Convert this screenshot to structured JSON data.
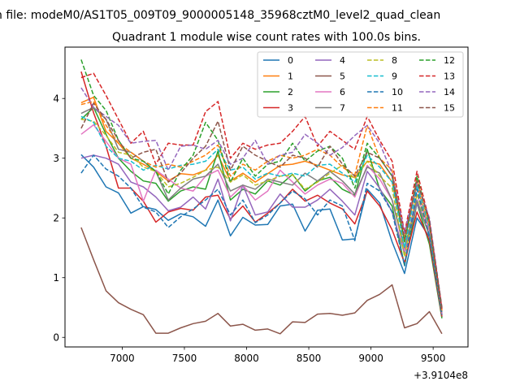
{
  "chart_data": {
    "type": "line",
    "suptitle": "n file: modeM0/AS1T05_009T09_9000005148_35968cztM0_level2_quad_clean",
    "title": "Quadrant 1 module wise count rates with 100.0s bins.",
    "xlabel": "",
    "ylabel": "",
    "x_offset_label": "+3.9104e8",
    "xlim": [
      6540,
      9780
    ],
    "ylim": [
      -0.16,
      4.86
    ],
    "xticks": [
      7000,
      7500,
      8000,
      8500,
      9000,
      9500
    ],
    "yticks": [
      0,
      1,
      2,
      3,
      4
    ],
    "legend_position": "top-right",
    "x": [
      6670,
      6770,
      6870,
      6970,
      7070,
      7170,
      7270,
      7370,
      7470,
      7570,
      7670,
      7770,
      7870,
      7970,
      8070,
      8170,
      8270,
      8370,
      8470,
      8570,
      8670,
      8770,
      8870,
      8970,
      9070,
      9170,
      9270,
      9370,
      9470,
      9570
    ],
    "series": [
      {
        "name": "0",
        "color": "#1f77b4",
        "dash": "solid",
        "values": [
          3.06,
          2.85,
          2.52,
          2.42,
          2.08,
          2.19,
          2.14,
          1.96,
          2.07,
          2.02,
          1.86,
          2.3,
          1.7,
          2.01,
          1.88,
          1.89,
          2.2,
          2.23,
          1.78,
          2.13,
          2.15,
          1.63,
          1.65,
          2.48,
          2.25,
          1.6,
          1.07,
          2.0,
          1.68,
          0.34
        ]
      },
      {
        "name": "1",
        "color": "#ff7f0e",
        "dash": "solid",
        "values": [
          3.93,
          4.02,
          3.45,
          3.25,
          3.0,
          2.9,
          2.78,
          2.62,
          2.74,
          2.72,
          2.8,
          3.05,
          2.62,
          2.75,
          2.6,
          2.74,
          2.88,
          2.9,
          2.95,
          2.88,
          2.8,
          2.72,
          2.68,
          2.95,
          2.9,
          2.6,
          1.6,
          2.55,
          1.8,
          0.38
        ]
      },
      {
        "name": "2",
        "color": "#2ca02c",
        "dash": "solid",
        "values": [
          3.65,
          3.85,
          3.4,
          3.0,
          2.78,
          2.62,
          2.58,
          2.28,
          2.45,
          2.52,
          2.48,
          3.12,
          2.3,
          2.48,
          2.4,
          2.62,
          2.55,
          2.73,
          2.45,
          2.62,
          2.68,
          2.48,
          2.38,
          3.15,
          2.48,
          2.2,
          1.2,
          2.25,
          1.56,
          0.32
        ]
      },
      {
        "name": "3",
        "color": "#d62728",
        "dash": "solid",
        "values": [
          4.45,
          3.76,
          3.2,
          2.5,
          2.5,
          2.28,
          1.93,
          2.1,
          2.16,
          2.13,
          2.35,
          2.38,
          1.98,
          2.2,
          1.93,
          2.08,
          2.25,
          2.48,
          2.28,
          2.38,
          2.25,
          2.15,
          1.9,
          2.45,
          2.2,
          1.8,
          1.25,
          2.1,
          1.62,
          0.35
        ]
      },
      {
        "name": "4",
        "color": "#9467bd",
        "dash": "solid",
        "values": [
          3.0,
          3.05,
          3.0,
          2.9,
          2.6,
          2.52,
          2.35,
          2.12,
          2.18,
          2.35,
          2.15,
          2.65,
          1.95,
          2.55,
          2.05,
          2.1,
          2.4,
          2.18,
          2.18,
          2.3,
          2.48,
          2.28,
          2.05,
          2.78,
          2.5,
          2.1,
          1.4,
          2.25,
          1.72,
          0.38
        ]
      },
      {
        "name": "5",
        "color": "#8c564b",
        "dash": "solid",
        "values": [
          1.84,
          1.3,
          0.78,
          0.58,
          0.47,
          0.38,
          0.07,
          0.07,
          0.16,
          0.23,
          0.27,
          0.4,
          0.19,
          0.22,
          0.12,
          0.14,
          0.06,
          0.26,
          0.25,
          0.39,
          0.4,
          0.37,
          0.41,
          0.62,
          0.72,
          0.88,
          0.16,
          0.23,
          0.43,
          0.06
        ]
      },
      {
        "name": "6",
        "color": "#e377c2",
        "dash": "solid",
        "values": [
          3.4,
          3.56,
          3.28,
          3.0,
          2.9,
          2.28,
          2.8,
          2.65,
          2.5,
          2.45,
          2.7,
          2.8,
          2.35,
          2.55,
          2.3,
          2.45,
          2.8,
          2.6,
          2.4,
          2.55,
          2.65,
          2.58,
          2.35,
          2.88,
          2.65,
          2.3,
          1.45,
          2.4,
          1.78,
          0.4
        ]
      },
      {
        "name": "7",
        "color": "#7f7f7f",
        "dash": "solid",
        "values": [
          3.75,
          3.85,
          3.65,
          3.15,
          3.1,
          2.95,
          2.78,
          2.3,
          2.5,
          2.65,
          2.7,
          2.9,
          2.45,
          2.55,
          2.48,
          2.65,
          2.6,
          2.55,
          2.75,
          2.62,
          2.78,
          2.62,
          2.4,
          2.85,
          2.75,
          2.3,
          1.5,
          2.3,
          1.7,
          0.42
        ]
      },
      {
        "name": "8",
        "color": "#bcbd22",
        "dash": "dashed",
        "values": [
          3.65,
          3.62,
          3.38,
          3.1,
          3.05,
          2.85,
          2.78,
          2.52,
          2.58,
          2.68,
          2.8,
          2.85,
          2.6,
          2.72,
          2.55,
          2.62,
          2.7,
          2.72,
          2.48,
          2.6,
          2.75,
          2.88,
          2.65,
          2.95,
          2.7,
          2.5,
          1.35,
          2.4,
          1.7,
          0.45
        ]
      },
      {
        "name": "9",
        "color": "#17becf",
        "dash": "dashed",
        "values": [
          3.7,
          3.6,
          3.2,
          3.0,
          2.95,
          2.8,
          2.88,
          2.82,
          2.88,
          2.9,
          2.95,
          3.15,
          2.8,
          2.85,
          2.65,
          2.75,
          2.7,
          2.75,
          2.7,
          2.88,
          2.9,
          2.75,
          2.6,
          3.05,
          2.85,
          2.6,
          1.5,
          2.55,
          1.85,
          0.45
        ]
      },
      {
        "name": "10",
        "color": "#1f77b4",
        "dash": "dashed",
        "values": [
          2.75,
          3.05,
          2.82,
          2.7,
          2.5,
          2.18,
          2.1,
          1.84,
          2.02,
          2.15,
          2.3,
          2.48,
          2.05,
          2.3,
          1.92,
          2.05,
          2.25,
          2.45,
          2.32,
          2.05,
          2.3,
          2.2,
          1.62,
          2.58,
          2.45,
          2.1,
          1.2,
          2.48,
          1.7,
          0.38
        ]
      },
      {
        "name": "11",
        "color": "#ff7f0e",
        "dash": "dashed",
        "values": [
          3.9,
          3.95,
          3.55,
          3.25,
          3.1,
          2.95,
          2.85,
          2.9,
          2.85,
          2.95,
          3.05,
          3.22,
          2.7,
          2.9,
          2.8,
          2.95,
          3.05,
          3.0,
          3.05,
          3.15,
          3.05,
          2.85,
          2.72,
          3.55,
          3.0,
          2.8,
          1.7,
          2.65,
          1.9,
          0.45
        ]
      },
      {
        "name": "12",
        "color": "#2ca02c",
        "dash": "dashed",
        "values": [
          4.65,
          4.05,
          3.8,
          3.3,
          3.0,
          2.95,
          2.78,
          2.4,
          2.8,
          3.05,
          3.6,
          3.3,
          2.6,
          3.0,
          2.7,
          2.9,
          2.95,
          3.25,
          2.95,
          3.12,
          3.2,
          3.0,
          2.5,
          3.25,
          3.0,
          2.7,
          1.6,
          2.7,
          1.9,
          0.45
        ]
      },
      {
        "name": "13",
        "color": "#d62728",
        "dash": "dashed",
        "values": [
          4.35,
          4.42,
          4.05,
          3.65,
          3.25,
          3.45,
          2.9,
          3.25,
          3.22,
          3.22,
          3.78,
          3.95,
          3.0,
          3.25,
          3.15,
          3.22,
          3.25,
          3.45,
          3.7,
          3.2,
          3.45,
          3.3,
          3.15,
          3.7,
          3.3,
          2.95,
          1.75,
          2.78,
          1.95,
          0.48
        ]
      },
      {
        "name": "14",
        "color": "#9467bd",
        "dash": "dashed",
        "values": [
          4.18,
          3.85,
          3.7,
          3.55,
          3.25,
          3.28,
          3.3,
          2.8,
          3.2,
          3.22,
          3.15,
          3.3,
          2.9,
          3.0,
          3.3,
          2.9,
          3.05,
          3.1,
          3.4,
          3.25,
          3.05,
          3.18,
          3.38,
          3.55,
          3.25,
          2.75,
          1.75,
          2.6,
          2.0,
          0.5
        ]
      },
      {
        "name": "15",
        "color": "#8c564b",
        "dash": "dashed",
        "values": [
          3.5,
          3.92,
          3.65,
          3.3,
          3.0,
          3.1,
          3.15,
          2.6,
          2.75,
          3.0,
          3.2,
          3.62,
          2.8,
          3.2,
          3.05,
          2.95,
          2.85,
          3.05,
          3.0,
          2.85,
          3.2,
          2.9,
          2.7,
          3.1,
          3.0,
          2.7,
          1.65,
          2.62,
          1.95,
          0.5
        ]
      }
    ]
  }
}
